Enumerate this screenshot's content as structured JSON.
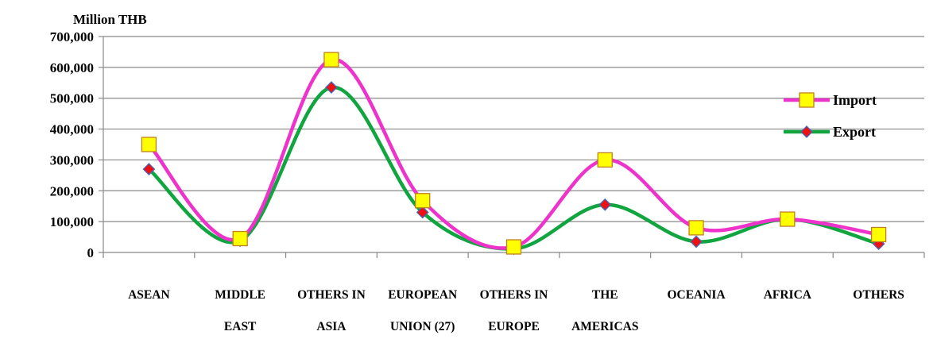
{
  "chart_data": {
    "type": "line",
    "ylabel": "Million THB",
    "categories": [
      [
        "ASEAN"
      ],
      [
        "MIDDLE",
        "EAST"
      ],
      [
        "OTHERS IN",
        "ASIA"
      ],
      [
        "EUROPEAN",
        "UNION (27)"
      ],
      [
        "OTHERS IN",
        "EUROPE"
      ],
      [
        "THE",
        "AMERICAS"
      ],
      [
        "OCEANIA"
      ],
      [
        "AFRICA"
      ],
      [
        "OTHERS"
      ]
    ],
    "ylim": [
      0,
      700000
    ],
    "yticks": [
      0,
      100000,
      200000,
      300000,
      400000,
      500000,
      600000,
      700000
    ],
    "ytick_labels": [
      "0",
      "100,000",
      "200,000",
      "300,000",
      "400,000",
      "500,000",
      "600,000",
      "700,000"
    ],
    "grid": true,
    "legend_position": "right",
    "series": [
      {
        "name": "Import",
        "values": [
          350000,
          45000,
          625000,
          168000,
          18000,
          300000,
          80000,
          108000,
          58000
        ],
        "line_color": "#ee33cc",
        "marker": "square",
        "marker_fill": "#ffff00",
        "marker_stroke": "#c08020"
      },
      {
        "name": "Export",
        "values": [
          270000,
          38000,
          535000,
          130000,
          12000,
          155000,
          35000,
          108000,
          28000
        ],
        "line_color": "#11a53f",
        "marker": "diamond",
        "marker_fill": "#ee1111",
        "marker_stroke": "#4466bb"
      }
    ]
  }
}
